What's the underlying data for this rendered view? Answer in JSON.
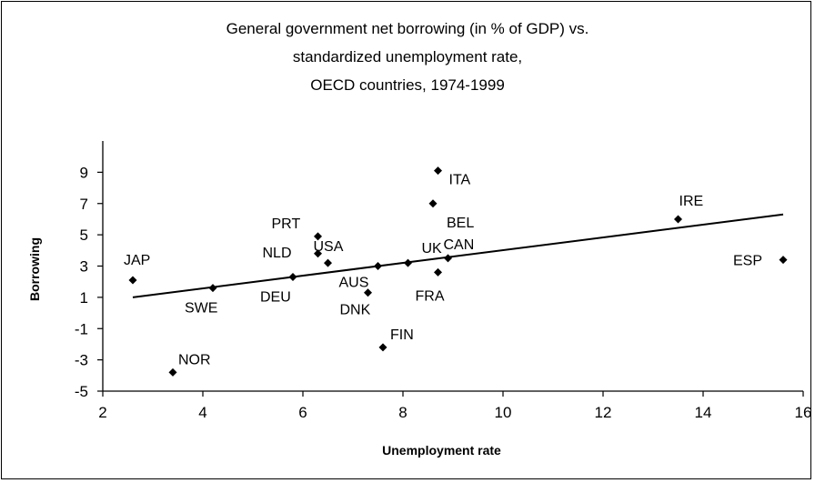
{
  "chart_data": {
    "type": "scatter",
    "title_lines": [
      "General government net borrowing (in % of GDP) vs.",
      "standardized unemployment rate,",
      "OECD countries, 1974-1999"
    ],
    "xlabel": "Unemployment rate",
    "ylabel": "Borrowing",
    "xlim": [
      2,
      16
    ],
    "ylim": [
      -5,
      11
    ],
    "xticks": [
      2,
      4,
      6,
      8,
      10,
      12,
      14,
      16
    ],
    "yticks": [
      -5,
      -3,
      -1,
      1,
      3,
      5,
      7,
      9
    ],
    "grid": false,
    "legend": "none",
    "marker_color": "#000000",
    "points": [
      {
        "label": "JAP",
        "x": 2.6,
        "y": 2.1
      },
      {
        "label": "NOR",
        "x": 3.4,
        "y": -3.8
      },
      {
        "label": "SWE",
        "x": 4.2,
        "y": 1.6
      },
      {
        "label": "DEU",
        "x": 5.8,
        "y": 2.3
      },
      {
        "label": "PRT",
        "x": 6.3,
        "y": 4.9
      },
      {
        "label": "NLD",
        "x": 6.3,
        "y": 3.8
      },
      {
        "label": "USA",
        "x": 6.5,
        "y": 3.2
      },
      {
        "label": "DNK",
        "x": 7.3,
        "y": 1.3
      },
      {
        "label": "AUS",
        "x": 7.5,
        "y": 3.0
      },
      {
        "label": "FIN",
        "x": 7.6,
        "y": -2.2
      },
      {
        "label": "UK",
        "x": 8.1,
        "y": 3.2
      },
      {
        "label": "BEL",
        "x": 8.6,
        "y": 7.0
      },
      {
        "label": "ITA",
        "x": 8.7,
        "y": 9.1
      },
      {
        "label": "FRA",
        "x": 8.7,
        "y": 2.6
      },
      {
        "label": "CAN",
        "x": 8.9,
        "y": 3.5
      },
      {
        "label": "IRE",
        "x": 13.5,
        "y": 6.0
      },
      {
        "label": "ESP",
        "x": 15.6,
        "y": 3.4
      }
    ],
    "trendline": {
      "x": [
        2.6,
        15.6
      ],
      "y": [
        1.0,
        6.3
      ]
    }
  }
}
